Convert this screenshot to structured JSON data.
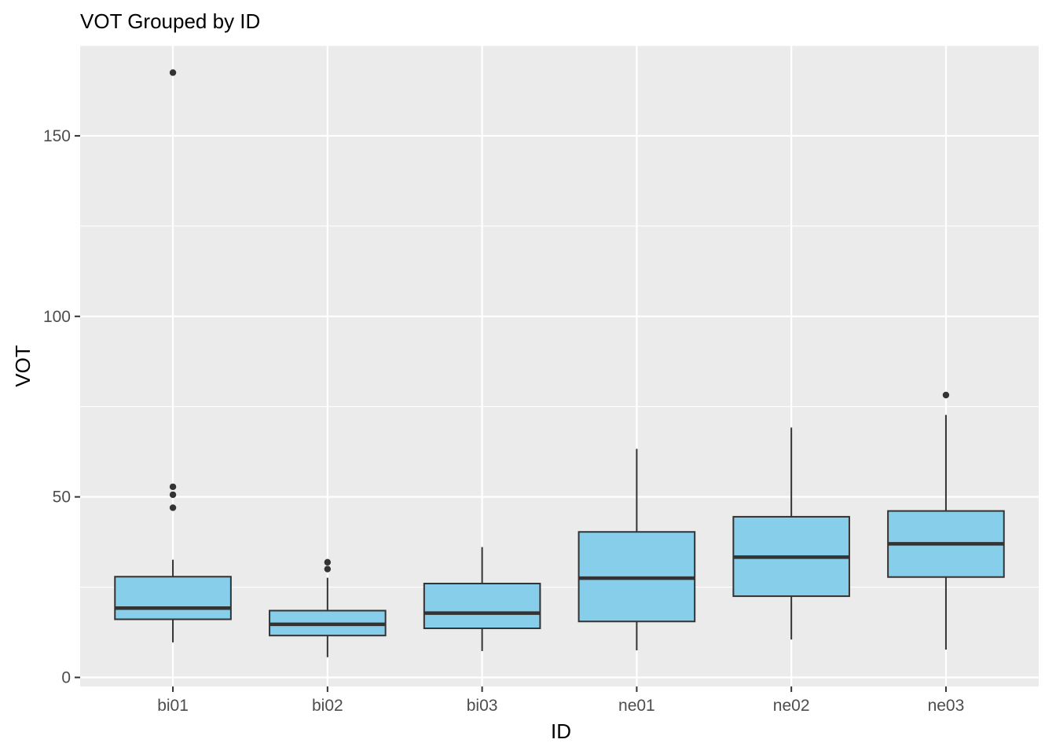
{
  "chart_data": {
    "type": "boxplot",
    "title": "VOT Grouped by ID",
    "xlabel": "ID",
    "ylabel": "VOT",
    "categories": [
      "bi01",
      "bi02",
      "bi03",
      "ne01",
      "ne02",
      "ne03"
    ],
    "ylim": [
      -2.5,
      175
    ],
    "yticks": [
      0,
      50,
      100,
      150
    ],
    "grid": true,
    "colors": {
      "panel": "#ebebeb",
      "grid": "#ffffff",
      "box_fill": "#87ceeb",
      "box_stroke": "#333333",
      "axis_text": "#4d4d4d",
      "tick": "#333333"
    },
    "boxes": [
      {
        "category": "bi01",
        "lower": 9.7,
        "q1": 16.1,
        "median": 19.2,
        "q3": 27.9,
        "upper": 32.6,
        "outliers": [
          167.5,
          52.8,
          50.6,
          47.0
        ]
      },
      {
        "category": "bi02",
        "lower": 5.6,
        "q1": 11.6,
        "median": 14.7,
        "q3": 18.5,
        "upper": 27.6,
        "outliers": [
          31.9,
          30.0
        ]
      },
      {
        "category": "bi03",
        "lower": 7.3,
        "q1": 13.6,
        "median": 17.8,
        "q3": 26.0,
        "upper": 36.1,
        "outliers": []
      },
      {
        "category": "ne01",
        "lower": 7.5,
        "q1": 15.5,
        "median": 27.5,
        "q3": 40.3,
        "upper": 63.3,
        "outliers": []
      },
      {
        "category": "ne02",
        "lower": 10.5,
        "q1": 22.5,
        "median": 33.3,
        "q3": 44.5,
        "upper": 69.2,
        "outliers": []
      },
      {
        "category": "ne03",
        "lower": 7.7,
        "q1": 27.8,
        "median": 37.0,
        "q3": 46.1,
        "upper": 72.7,
        "outliers": [
          78.2
        ]
      }
    ]
  }
}
